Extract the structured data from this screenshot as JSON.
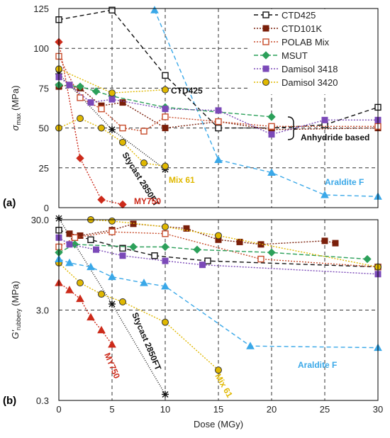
{
  "chart_data": [
    {
      "panel": "(a)",
      "type": "line",
      "ylabel_main": "σ",
      "ylabel_sub": "max",
      "ylabel_unit": " (MPa)",
      "xlim": [
        0,
        30
      ],
      "ylim": [
        0,
        125
      ],
      "yticks": [
        0,
        25,
        50,
        75,
        100,
        125
      ],
      "grid": true,
      "legend_position": "top-right",
      "series": [
        {
          "name": "CTD425",
          "color": "#111111",
          "marker": "square-open",
          "dash": "6,4",
          "x": [
            0,
            5,
            10,
            15,
            20,
            25,
            30
          ],
          "y": [
            118,
            124,
            83,
            50,
            50,
            52,
            63
          ]
        },
        {
          "name": "CTD101K",
          "color": "#7a1f0a",
          "marker": "square",
          "dash": "2,2",
          "x": [
            0,
            1,
            2,
            4,
            6,
            10,
            15,
            20,
            30
          ],
          "y": [
            76,
            77,
            75,
            64,
            66,
            50,
            54,
            49,
            50
          ]
        },
        {
          "name": "POLAB Mix",
          "color": "#c84d2c",
          "marker": "square-open",
          "dash": "2,2",
          "x": [
            0,
            2,
            4,
            6,
            8,
            10,
            15,
            20,
            30
          ],
          "y": [
            95,
            69,
            62,
            50,
            48,
            57,
            54,
            51,
            51
          ]
        },
        {
          "name": "MSUT",
          "color": "#2ca05a",
          "marker": "diamond",
          "dash": "6,3",
          "x": [
            0,
            2,
            3.5,
            5,
            10,
            20
          ],
          "y": [
            77,
            76,
            73,
            70,
            63,
            57
          ]
        },
        {
          "name": "Damisol 3418",
          "color": "#7b49b8",
          "marker": "square",
          "dash": "2,2",
          "x": [
            0,
            1,
            3,
            5,
            10,
            15,
            20,
            25,
            30
          ],
          "y": [
            82,
            77,
            66,
            68,
            62,
            61,
            46,
            55,
            55
          ]
        },
        {
          "name": "Damisol 3420",
          "color": "#e0b800",
          "marker": "circle",
          "dash": "2,2",
          "x": [
            0,
            5,
            10
          ],
          "y": [
            87,
            72,
            74
          ]
        }
      ],
      "extra_series": [
        {
          "label": "Stycast 2850FT",
          "color": "#111111",
          "marker": "star",
          "dash": "1,2",
          "x": [
            0,
            5,
            10
          ],
          "y": [
            84,
            49,
            24
          ]
        },
        {
          "label": "Mix 61",
          "color": "#e0b800",
          "marker": "circle",
          "dash": "2,2",
          "x": [
            0,
            2,
            4,
            6,
            8,
            10
          ],
          "y": [
            50,
            56,
            50,
            41,
            28,
            26
          ]
        },
        {
          "label": "MY750",
          "color": "#cc2a1a",
          "marker": "diamond",
          "dash": "2,2",
          "x": [
            0,
            2,
            4,
            6
          ],
          "y": [
            104,
            31,
            5,
            2
          ]
        },
        {
          "label": "Araldite F",
          "color": "#3aa8e8",
          "marker": "triangle",
          "dash": "6,4",
          "x": [
            9,
            15,
            20,
            25,
            30
          ],
          "y": [
            124,
            30,
            22,
            8,
            7
          ]
        }
      ],
      "annotations": [
        {
          "text": "CTD425",
          "color": "#111111"
        },
        {
          "text": "Stycast 2850FT",
          "color": "#111111"
        },
        {
          "text": "Mix 61",
          "color": "#e0b800"
        },
        {
          "text": "MY750",
          "color": "#cc2a1a"
        },
        {
          "text": "Araldite F",
          "color": "#3aa8e8"
        },
        {
          "text": "Anhydride based",
          "color": "#111111"
        }
      ]
    },
    {
      "panel": "(b)",
      "type": "line",
      "ylabel_main": "G'",
      "ylabel_sub": "rubbery",
      "ylabel_unit": " (MPa)",
      "xlabel": "Dose (MGy)",
      "xlim": [
        0,
        30
      ],
      "ylim": [
        0.3,
        30
      ],
      "yscale": "log",
      "yticks": [
        "0.3",
        "3.0",
        "30.0"
      ],
      "xticks": [
        "0",
        "5",
        "10",
        "15",
        "20",
        "25",
        "30"
      ],
      "grid": true,
      "series": [
        {
          "name": "CTD425",
          "color": "#111111",
          "marker": "square-open",
          "dash": "6,4",
          "x": [
            0,
            3,
            6,
            9,
            14,
            30
          ],
          "y": [
            23,
            18,
            14.5,
            12,
            10.5,
            9
          ]
        },
        {
          "name": "CTD101K",
          "color": "#7a1f0a",
          "marker": "square",
          "dash": "2,2",
          "x": [
            1,
            2,
            5,
            7,
            12,
            15,
            17,
            19,
            25,
            26
          ],
          "y": [
            21,
            20,
            23,
            27,
            24,
            18,
            17,
            16,
            17.5,
            16.5
          ]
        },
        {
          "name": "POLAB Mix",
          "color": "#c84d2c",
          "marker": "square-open",
          "dash": "2,2",
          "x": [
            0,
            1.5,
            5,
            10,
            19,
            30
          ],
          "y": [
            15,
            19,
            22,
            21,
            11,
            9
          ]
        },
        {
          "name": "MSUT",
          "color": "#2ca05a",
          "marker": "diamond",
          "dash": "6,3",
          "x": [
            0,
            1.5,
            7,
            10,
            13,
            20,
            29
          ],
          "y": [
            13,
            16,
            15,
            15,
            14,
            13,
            11
          ]
        },
        {
          "name": "Damisol 3418",
          "color": "#7b49b8",
          "marker": "square",
          "dash": "2,2",
          "x": [
            0,
            1,
            3.5,
            6,
            10,
            13.5,
            30
          ],
          "y": [
            19,
            16,
            14,
            12,
            10.5,
            9.5,
            7.5
          ]
        },
        {
          "name": "Damisol 3420",
          "color": "#e0b800",
          "marker": "circle",
          "dash": "2,2",
          "x": [
            3,
            5,
            10,
            15,
            30
          ],
          "y": [
            30,
            29,
            25,
            20,
            9
          ]
        }
      ],
      "extra_series": [
        {
          "label": "Stycast 2850FT",
          "color": "#111111",
          "marker": "star",
          "dash": "1,2",
          "x": [
            0,
            5,
            10
          ],
          "y": [
            31,
            3.5,
            0.35
          ]
        },
        {
          "label": "Mix 61",
          "color": "#e0b800",
          "marker": "circle",
          "dash": "2,2",
          "x": [
            0,
            2,
            4,
            6,
            10,
            15
          ],
          "y": [
            10,
            6,
            4.5,
            3.7,
            2.2,
            0.65
          ]
        },
        {
          "label": "MY750",
          "color": "#cc2a1a",
          "marker": "triangle",
          "dash": "2,2",
          "x": [
            0,
            1,
            2,
            3,
            4,
            5
          ],
          "y": [
            6,
            5,
            4,
            2.5,
            1.8,
            1.25
          ]
        },
        {
          "label": "Araldite F",
          "color": "#3aa8e8",
          "marker": "triangle",
          "dash": "6,4",
          "x": [
            0,
            1,
            3,
            5,
            8,
            10,
            18,
            30
          ],
          "y": [
            11,
            10,
            9,
            7,
            6,
            5.5,
            1.2,
            1.15
          ]
        }
      ],
      "annotations": [
        {
          "text": "Stycast 2850FT",
          "color": "#111111"
        },
        {
          "text": "MY750",
          "color": "#cc2a1a"
        },
        {
          "text": "Mix 61",
          "color": "#e0b800"
        },
        {
          "text": "Araldite F",
          "color": "#3aa8e8"
        }
      ]
    }
  ]
}
